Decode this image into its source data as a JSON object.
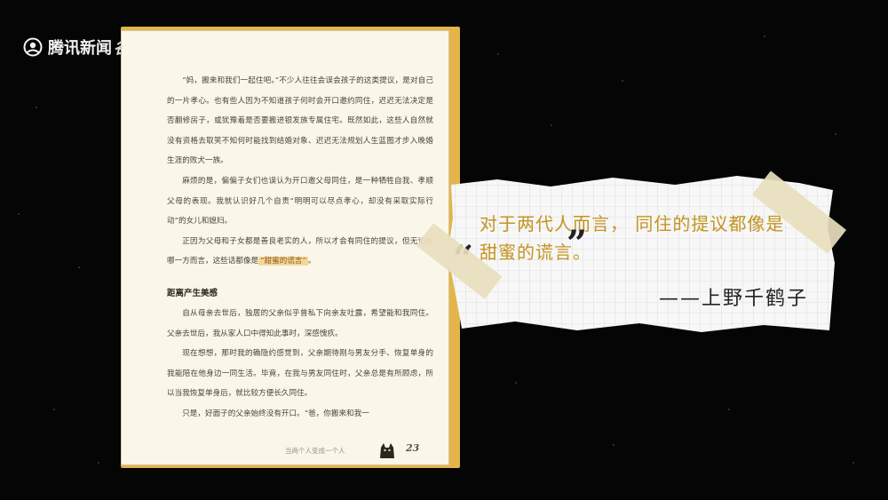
{
  "logo": {
    "text": "腾讯新闻",
    "tag": "谷雨",
    "icon": "tencent-news-icon"
  },
  "book": {
    "paragraphs": [
      "“妈，搬来和我们一起住吧。”不少人往往会误会孩子的这类提议，是对自己的一片孝心。也有些人因为不知道孩子何时会开口邀约同住，迟迟无法决定是否翻修房子，或犹豫着是否要搬进银发族专属住宅。既然如此，这些人自然就没有资格去取笑不知何时能找到结婚对象、迟迟无法规划人生蓝图才步入晚婚生涯的败犬一族。",
      "麻烦的是，偏偏子女们也误认为开口邀父母同住，是一种牺牲自我、孝顺父母的表现。我就认识好几个自责“明明可以尽点孝心，却没有采取实际行动”的女儿和媳妇。"
    ],
    "para3_before": "正因为父母和子女都是善良老实的人，所以才会有同住的提议，但无论对哪一方而言，这些话都像是",
    "highlight": "“甜蜜的谎言”",
    "para3_after": "。",
    "heading": "距离产生美感",
    "paragraphs2": [
      "自从母亲去世后，独居的父亲似乎曾私下向亲友吐露，希望能和我同住。父亲去世后，我从家人口中得知此事时，深感愧疚。",
      "现在想想，那时我的确隐约感觉到，父亲期待刚与男友分手、恢复单身的我能陪在他身边一同生活。毕竟，在我与男友同住时，父亲总是有所顾虑，所以当我恢复单身后，就比较方便长久同住。",
      "只是，好面子的父亲始终没有开口。“爸，你搬来和我一"
    ],
    "footer_title": "当两个人变成一个人",
    "page_number": "23"
  },
  "quote": {
    "line1": "对于两代人而言，  同住的提议都像是",
    "line2": "甜蜜的谎言。",
    "author": "——上野千鹤子",
    "open_mark": "“",
    "close_mark": "”"
  },
  "colors": {
    "page": "#fbf7e8",
    "page_edge": "#e3b54a",
    "quote_text": "#c49420",
    "highlight": "#f3d79a"
  }
}
